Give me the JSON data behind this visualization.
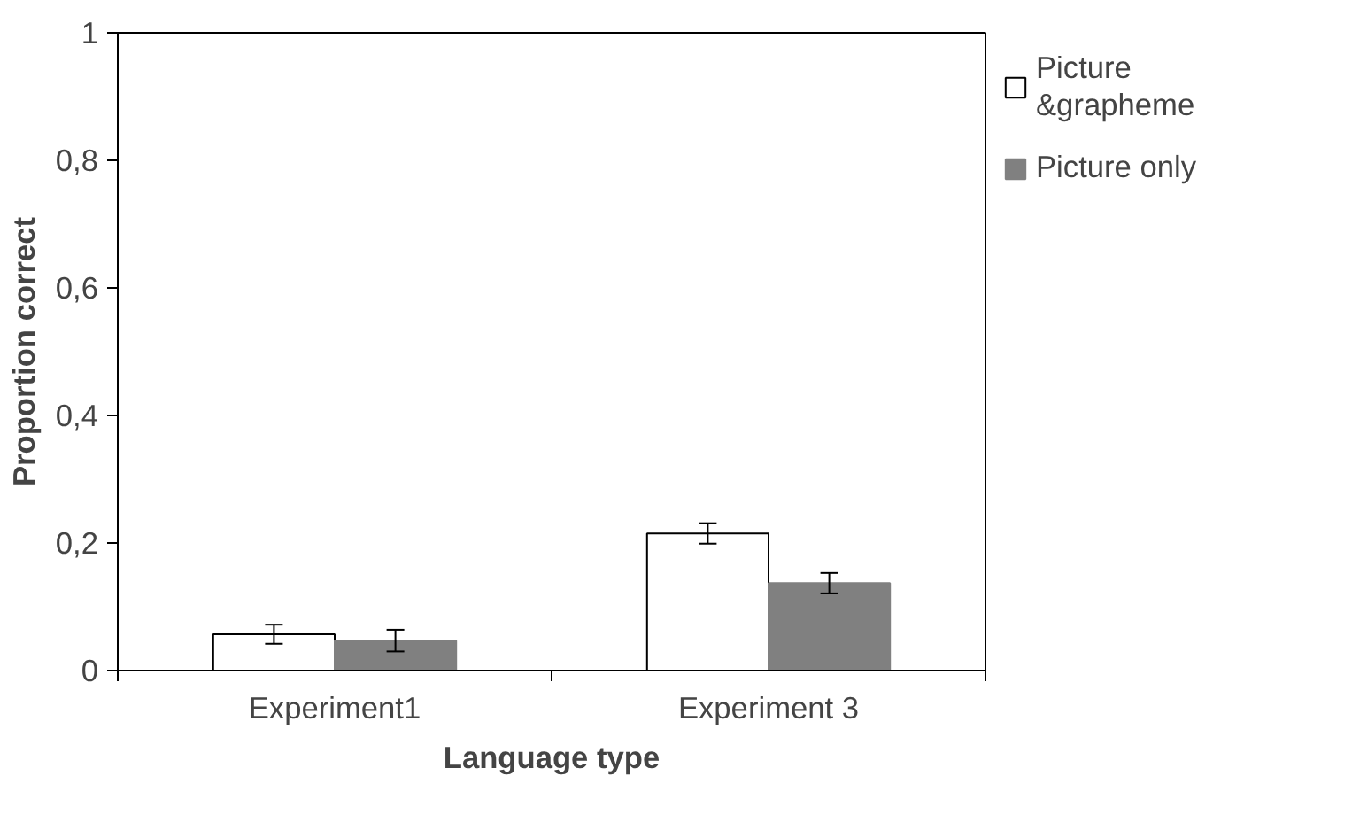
{
  "chart_data": {
    "type": "bar",
    "xlabel": "Language type",
    "ylabel": "Proportion correct",
    "categories": [
      "Experiment1",
      "Experiment 3"
    ],
    "series": [
      {
        "name": "Picture &grapheme",
        "color": "#ffffff",
        "values": [
          0.057,
          0.215
        ],
        "errors": [
          0.015,
          0.016
        ]
      },
      {
        "name": "Picture only",
        "color": "#808080",
        "values": [
          0.047,
          0.137
        ],
        "errors": [
          0.017,
          0.016
        ]
      }
    ],
    "ylim": [
      0,
      1
    ],
    "yticks": [
      0,
      {
        "value": 0.2,
        "label": "0,2"
      },
      {
        "value": 0.4,
        "label": "0,4"
      },
      {
        "value": 0.6,
        "label": "0,6"
      },
      {
        "value": 0.8,
        "label": "0,8"
      },
      1
    ],
    "grid": false,
    "legend": "top right"
  }
}
